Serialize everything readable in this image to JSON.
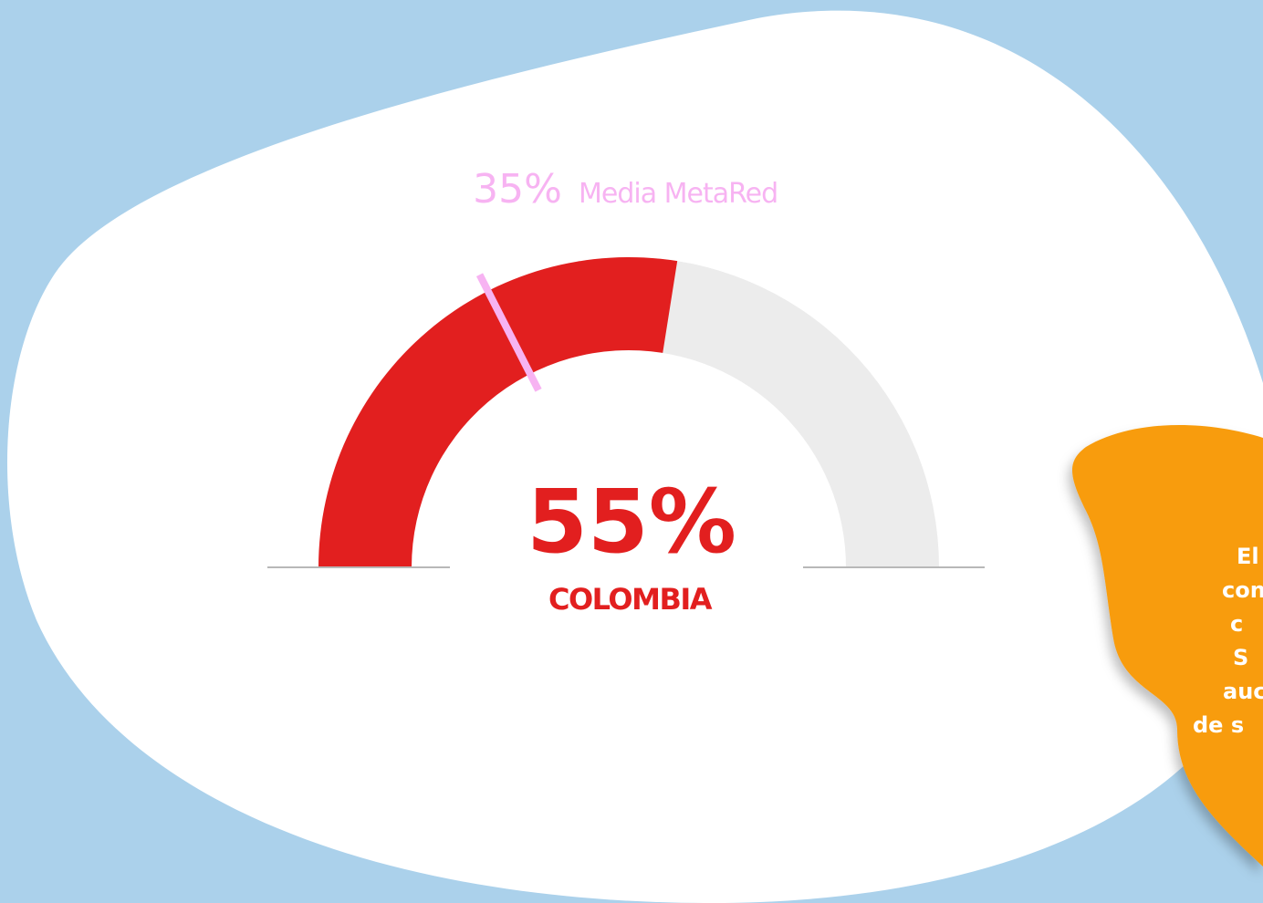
{
  "chart_data": {
    "type": "gauge",
    "categories": [
      "COLOMBIA"
    ],
    "values": [
      55
    ],
    "value_labels": [
      "55%"
    ],
    "color": "#e21f1f",
    "track_color": "#ececec",
    "ylim": [
      0,
      100
    ],
    "reference": {
      "name": "Media MetaRed",
      "value": 35,
      "value_label": "35%",
      "color": "#f7b3f2"
    }
  },
  "side_note": {
    "lines": [
      "El",
      "con",
      "c",
      "S",
      "auc",
      "de s"
    ]
  }
}
